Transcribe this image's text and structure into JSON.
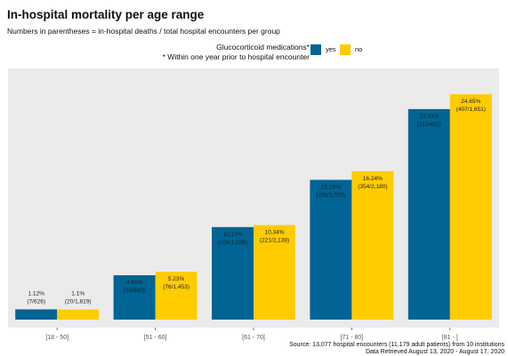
{
  "chart_data": {
    "type": "bar",
    "title": "In-hospital mortality per age range",
    "subtitle": "Numbers in parentheses = in-hospital deaths / total hospital encounters per group",
    "legend_title_line1": "Glucocorticoid medications*",
    "legend_title_line2": "* Within one year prior to hospital encounter",
    "legend_position": "top-right",
    "categories": [
      "[18 - 50]",
      "[51 - 60]",
      "[61 - 70]",
      "[71 - 80]",
      "[81 - ]"
    ],
    "ylim": [
      0,
      27
    ],
    "grid": false,
    "series": [
      {
        "name": "yes",
        "color": "#006494",
        "values": [
          1.12,
          4.85,
          10.12,
          15.29,
          23.03
        ],
        "labels": [
          "1.12%",
          "4.85%",
          "10.12%",
          "15.29%",
          "23.03%"
        ],
        "counts": [
          "(7/626)",
          "(33/680)",
          "(104/1,028)",
          "(156/1,020)",
          "(111/482)"
        ]
      },
      {
        "name": "no",
        "color": "#FFCC00",
        "values": [
          1.1,
          5.23,
          10.34,
          16.24,
          24.65
        ],
        "labels": [
          "1.1%",
          "5.23%",
          "10.34%",
          "16.24%",
          "24.65%"
        ],
        "counts": [
          "(20/1,819)",
          "(76/1,453)",
          "(221/2,138)",
          "(354/2,180)",
          "(407/1,651)"
        ]
      }
    ],
    "panel_color": "#EBEBEB",
    "source_line1": "Source: 13,077 hospital encounters (11,179 adult patients) from 10 institutions",
    "source_line2": "Data Retrieved August 13, 2020 - August 17, 2020"
  }
}
